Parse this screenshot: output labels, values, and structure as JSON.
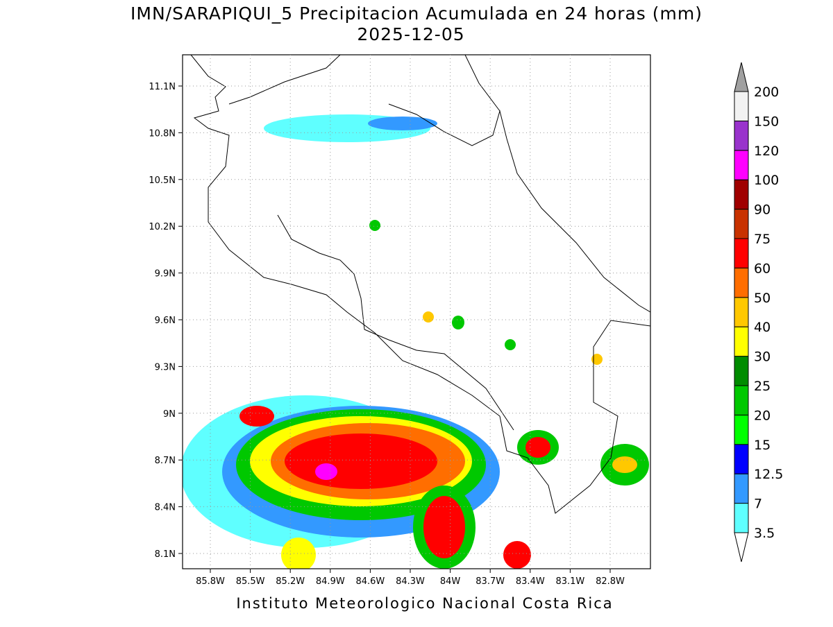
{
  "header": {
    "title": "IMN/SARAPIQUI_5 Precipitacion Acumulada en 24 horas (mm)",
    "date": "2025-12-05"
  },
  "map": {
    "lat_labels": [
      "11.1N",
      "10.8N",
      "10.5N",
      "10.2N",
      "9.9N",
      "9.6N",
      "9.3N",
      "9N",
      "8.7N",
      "8.4N",
      "8.1N"
    ],
    "lon_labels": [
      "85.8W",
      "85.5W",
      "85.2W",
      "84.9W",
      "84.6W",
      "84.3W",
      "84W",
      "83.7W",
      "83.4W",
      "83.1W",
      "82.8W"
    ]
  },
  "colorbar": {
    "levels": [
      3.5,
      7,
      12.5,
      15,
      20,
      25,
      30,
      40,
      50,
      60,
      75,
      90,
      100,
      120,
      150,
      200
    ],
    "colors": [
      "#5fffff",
      "#3399ff",
      "#0000ff",
      "#00ff00",
      "#00c800",
      "#008c00",
      "#ffff00",
      "#ffc800",
      "#ff6e00",
      "#ff0000",
      "#c83200",
      "#a00000",
      "#ff00ff",
      "#9933cc",
      "#f2f2f2"
    ],
    "under_color": "#ffffff",
    "over_color": "#a0a0a0"
  },
  "footer": "Instituto Meteorologico Nacional Costa Rica"
}
